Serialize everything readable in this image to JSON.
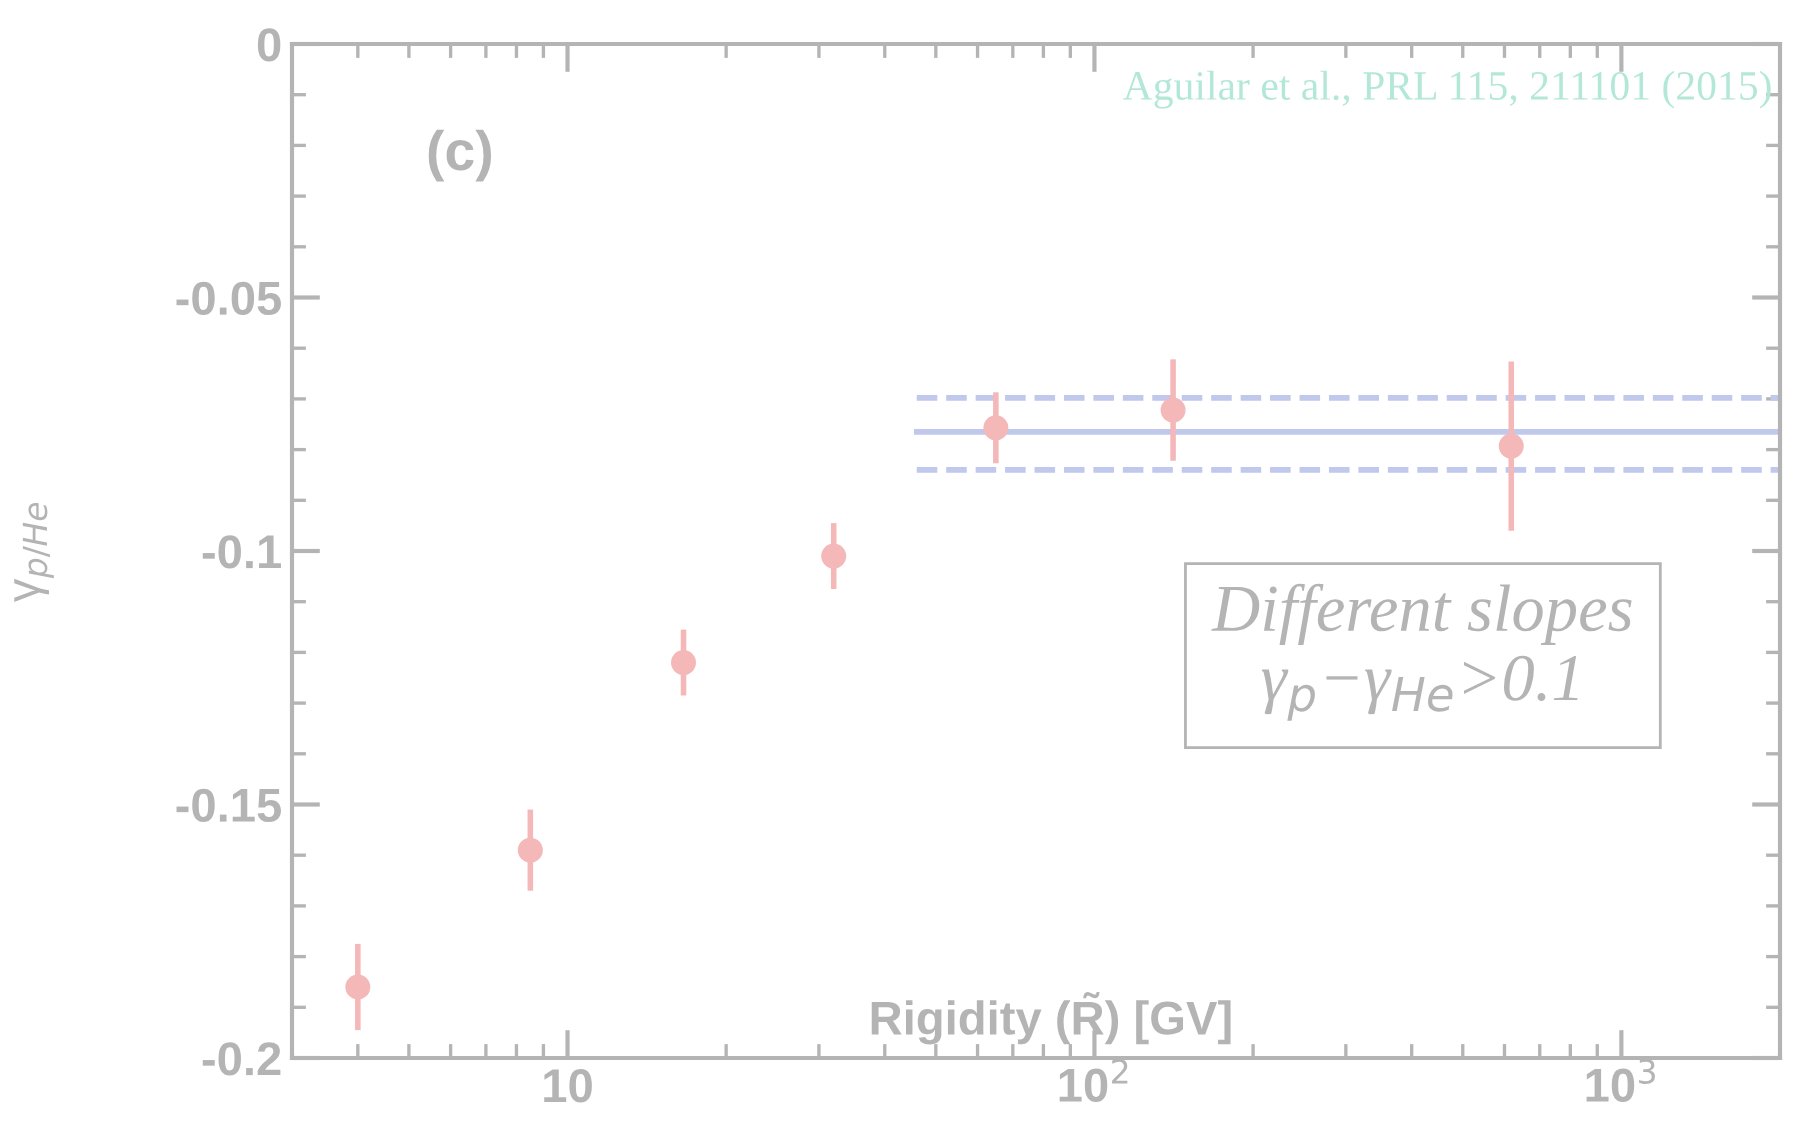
{
  "chart_data": {
    "type": "scatter",
    "xlabel": "Rigidity (R̃) [GV]",
    "ylabel": "γ$_{p/He}$",
    "log": "x",
    "xlim": [
      3,
      2000
    ],
    "ylim": [
      -0.2,
      0
    ],
    "xticks": [
      10,
      {
        "value": 100,
        "label": "10$^{2}$"
      },
      {
        "value": 1000,
        "label": "10$^{3}$"
      }
    ],
    "yticks": [
      {
        "value": -0.2,
        "label": "-0.2"
      },
      {
        "value": -0.15,
        "label": "-0.15"
      },
      {
        "value": -0.1,
        "label": "-0.1"
      },
      {
        "value": -0.05,
        "label": "-0.05"
      },
      0
    ],
    "grid": false,
    "legend": false,
    "marker": "circle",
    "series": [
      {
        "color": "#f4b8b8",
        "x": [
          4,
          8.5,
          16.6,
          32,
          65,
          141,
          618
        ],
        "values": [
          -0.186,
          -0.159,
          -0.122,
          -0.101,
          -0.0757,
          -0.0722,
          -0.0793
        ],
        "errors": [
          0.0085,
          0.008,
          0.0065,
          0.0065,
          0.007,
          0.01,
          0.0167
        ]
      },
      {
        "type": "line",
        "color": "#c0c8ec",
        "line_style": "solid",
        "marker": "none",
        "x": [
          46,
          2000
        ],
        "values": [
          -0.0765,
          -0.0765
        ]
      },
      {
        "type": "line",
        "color": "#c0c8ec",
        "line_style": "dashed",
        "marker": "none",
        "x": [
          46,
          2000
        ],
        "values": [
          -0.0698,
          -0.0698
        ]
      },
      {
        "type": "line",
        "color": "#c0c8ec",
        "line_style": "dashed",
        "marker": "none",
        "x": [
          46,
          2000
        ],
        "values": [
          -0.084,
          -0.084
        ]
      }
    ],
    "annotations": [
      "(c)",
      "Aguilar et al., PRL 115, 211101 (2015)",
      "Different slopes\nγ$_{p}$−γ$_{He}$>0.1"
    ]
  }
}
